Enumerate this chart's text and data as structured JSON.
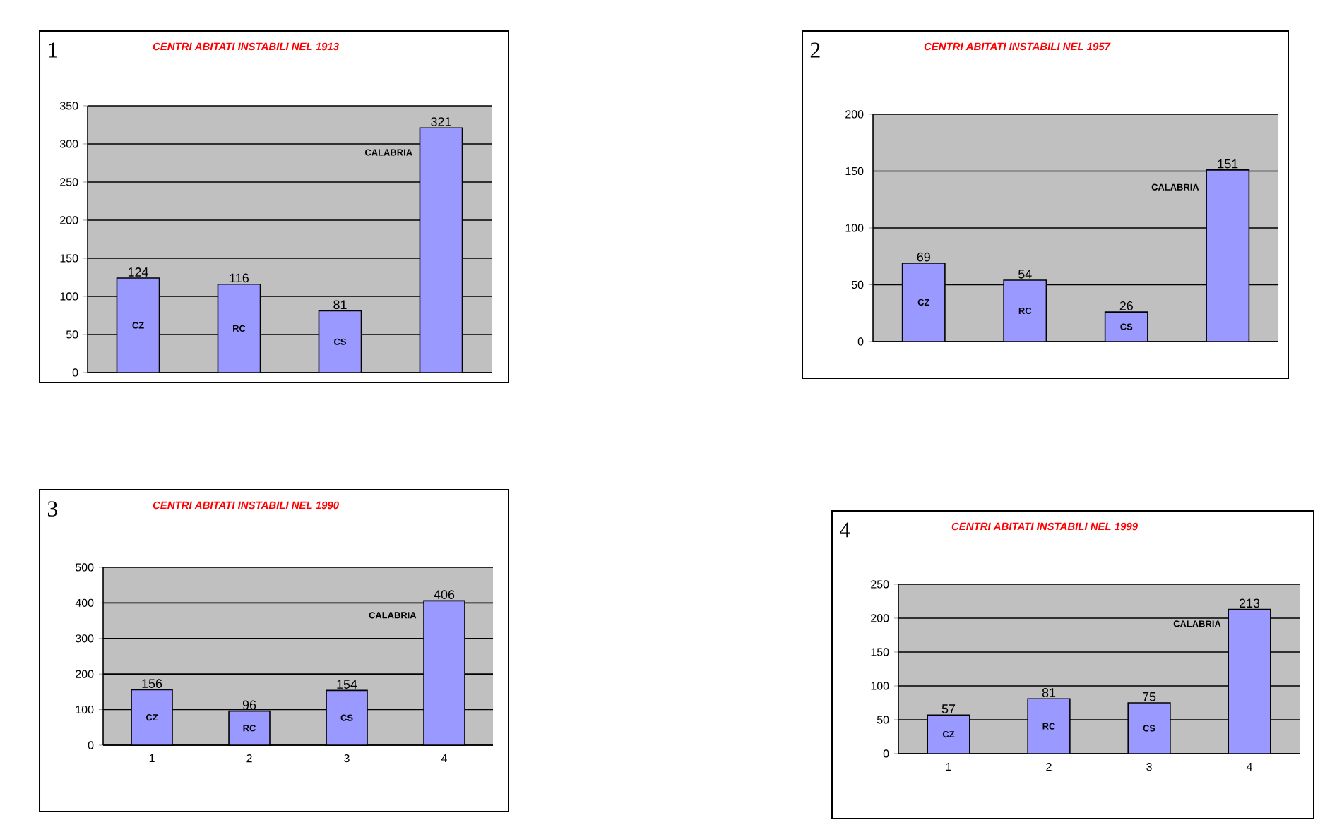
{
  "chart_data": [
    {
      "type": "bar",
      "title": "CENTRI ABITATI INSTABILI NEL 1913",
      "categories": [
        null,
        null,
        null,
        null
      ],
      "values": [
        124,
        116,
        81,
        321
      ],
      "color": "#9999ff",
      "ylim": [
        0,
        350
      ],
      "yticks": [
        0,
        50,
        100,
        150,
        200,
        250,
        300,
        350
      ],
      "grid": "y",
      "data_labels": true,
      "tick_labels": "y",
      "annotations": [
        "1",
        "CZ",
        "RC",
        "CS",
        "CALABRIA"
      ]
    },
    {
      "type": "bar",
      "title": "CENTRI ABITATI INSTABILI NEL 1957",
      "categories": [
        null,
        null,
        null,
        null
      ],
      "values": [
        69,
        54,
        26,
        151
      ],
      "color": "#9999ff",
      "ylim": [
        0,
        200
      ],
      "yticks": [
        0,
        50,
        100,
        150,
        200
      ],
      "grid": "y",
      "data_labels": true,
      "tick_labels": "y",
      "annotations": [
        "2",
        "CZ",
        "RC",
        "CS",
        "CALABRIA"
      ]
    },
    {
      "type": "bar",
      "title": "CENTRI ABITATI INSTABILI NEL 1990",
      "categories": [
        "1",
        "2",
        "3",
        "4"
      ],
      "values": [
        156,
        96,
        154,
        406
      ],
      "color": "#9999ff",
      "ylim": [
        0,
        500
      ],
      "yticks": [
        0,
        100,
        200,
        300,
        400,
        500
      ],
      "grid": "y",
      "data_labels": true,
      "annotations": [
        "3",
        "CZ",
        "RC",
        "CS",
        "CALABRIA"
      ]
    },
    {
      "type": "bar",
      "title": "CENTRI ABITATI INSTABILI NEL 1999",
      "categories": [
        "1",
        "2",
        "3",
        "4"
      ],
      "values": [
        57,
        81,
        75,
        213
      ],
      "color": "#9999ff",
      "ylim": [
        0,
        250
      ],
      "yticks": [
        0,
        50,
        100,
        150,
        200,
        250
      ],
      "grid": "y",
      "data_labels": true,
      "annotations": [
        "4",
        "CZ",
        "RC",
        "CS",
        "CALABRIA"
      ]
    }
  ]
}
